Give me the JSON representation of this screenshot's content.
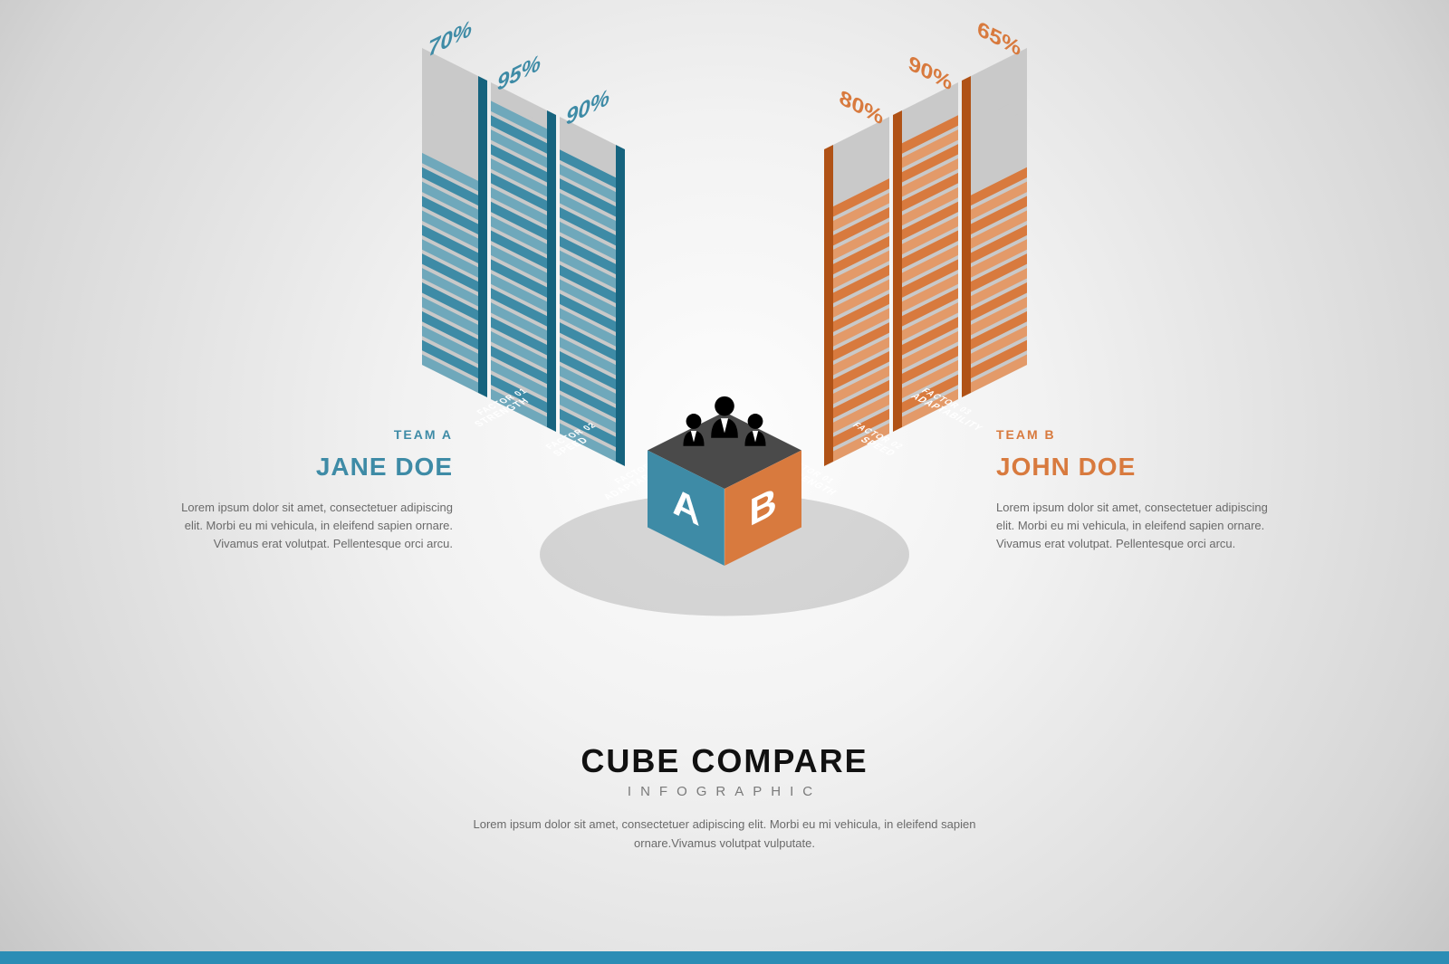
{
  "title": "CUBE COMPARE",
  "subtitle": "INFOGRAPHIC",
  "description": "Lorem ipsum dolor sit amet, consectetuer adipiscing elit. Morbi eu mi vehicula, in eleifend sapien ornare.Vivamus volutpat vulputate.",
  "cube": {
    "labelA": "A",
    "labelB": "B",
    "topColor": "#4a4a4a",
    "leftColor": "#3e8ba6",
    "rightColor": "#d87a3e",
    "labelColor": "#ffffff"
  },
  "teamA": {
    "teamLabel": "TEAM A",
    "name": "JANE DOE",
    "color": "#3e8ba6",
    "lightColor": "#6fa8bb",
    "emptyColor": "#c9c9c9",
    "description": "Lorem ipsum dolor sit amet, consectetuer adipiscing elit. Morbi eu mi vehicula, in eleifend sapien ornare. Vivamus erat volutpat. Pellentesque orci arcu.",
    "bars": [
      {
        "percent": 90,
        "label": "90%",
        "factorTop": "FACTOR 03",
        "factorBottom": "ADAPTABILITY"
      },
      {
        "percent": 95,
        "label": "95%",
        "factorTop": "FACTOR 02",
        "factorBottom": "SPEED"
      },
      {
        "percent": 70,
        "label": "70%",
        "factorTop": "FACTOR 01",
        "factorBottom": "STRENGTH"
      }
    ]
  },
  "teamB": {
    "teamLabel": "TEAM B",
    "name": "JOHN DOE",
    "color": "#d87a3e",
    "lightColor": "#e39a69",
    "emptyColor": "#c9c9c9",
    "description": "Lorem ipsum dolor sit amet, consectetuer adipiscing elit. Morbi eu mi vehicula, in eleifend sapien ornare. Vivamus erat volutpat. Pellentesque orci arcu.",
    "bars": [
      {
        "percent": 80,
        "label": "80%",
        "factorTop": "FACTOR 01",
        "factorBottom": "STRENGTH"
      },
      {
        "percent": 90,
        "label": "90%",
        "factorTop": "FACTOR 02",
        "factorBottom": "SPEED"
      },
      {
        "percent": 65,
        "label": "65%",
        "factorTop": "FACTOR 03",
        "factorBottom": "ADAPTABILITY"
      }
    ]
  },
  "layout": {
    "centerX": 800,
    "cubeCenterY": 540,
    "cubeSize": 85,
    "barWidth": 62,
    "barGap": 14,
    "barMaxHeight": 350,
    "segments": 22,
    "baseOffsetFromCube": 120,
    "percentFont": 24,
    "factorFont": 9,
    "isoRatio": 0.5
  },
  "footerColor": "#2c8db5"
}
